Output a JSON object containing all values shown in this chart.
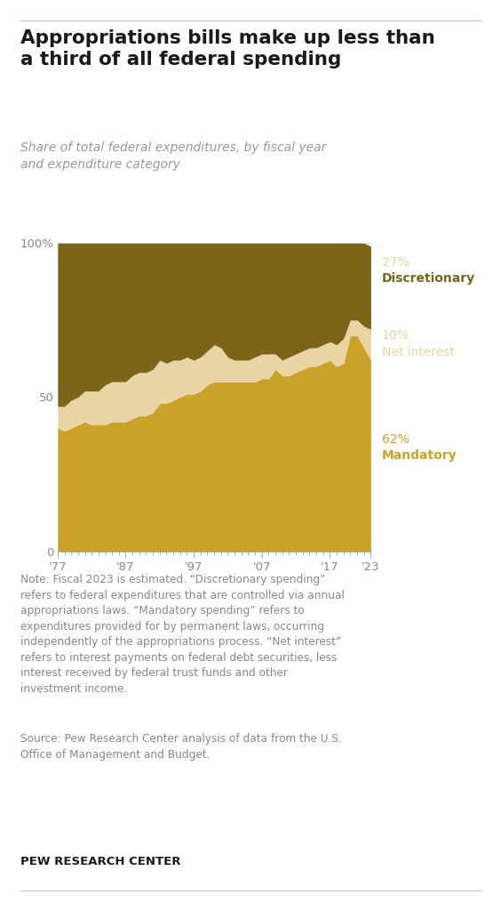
{
  "title": "Appropriations bills make up less than\na third of all federal spending",
  "subtitle": "Share of total federal expenditures, by fiscal year\nand expenditure category",
  "years": [
    1977,
    1978,
    1979,
    1980,
    1981,
    1982,
    1983,
    1984,
    1985,
    1986,
    1987,
    1988,
    1989,
    1990,
    1991,
    1992,
    1993,
    1994,
    1995,
    1996,
    1997,
    1998,
    1999,
    2000,
    2001,
    2002,
    2003,
    2004,
    2005,
    2006,
    2007,
    2008,
    2009,
    2010,
    2011,
    2012,
    2013,
    2014,
    2015,
    2016,
    2017,
    2018,
    2019,
    2020,
    2021,
    2022,
    2023
  ],
  "mandatory": [
    40,
    39,
    40,
    41,
    42,
    41,
    41,
    41,
    42,
    42,
    42,
    43,
    44,
    44,
    45,
    48,
    48,
    49,
    50,
    51,
    51,
    52,
    54,
    55,
    55,
    55,
    55,
    55,
    55,
    55,
    56,
    56,
    59,
    57,
    57,
    58,
    59,
    60,
    60,
    61,
    62,
    60,
    61,
    70,
    70,
    66,
    62
  ],
  "net_interest": [
    7,
    8,
    9,
    9,
    10,
    11,
    11,
    13,
    13,
    13,
    13,
    14,
    14,
    14,
    14,
    14,
    13,
    13,
    12,
    12,
    11,
    11,
    11,
    12,
    11,
    8,
    7,
    7,
    7,
    8,
    8,
    8,
    5,
    5,
    6,
    6,
    6,
    6,
    6,
    6,
    6,
    7,
    8,
    5,
    5,
    7,
    10
  ],
  "discretionary": [
    53,
    53,
    51,
    50,
    48,
    48,
    48,
    46,
    45,
    45,
    45,
    43,
    42,
    42,
    41,
    38,
    39,
    38,
    38,
    37,
    38,
    37,
    35,
    33,
    34,
    37,
    38,
    38,
    38,
    37,
    36,
    36,
    36,
    38,
    37,
    36,
    35,
    34,
    34,
    33,
    32,
    33,
    31,
    25,
    25,
    27,
    27
  ],
  "color_mandatory": "#c9a227",
  "color_net_interest": "#e8d5a3",
  "color_discretionary": "#7a6519",
  "label_mandatory_pct": "62%",
  "label_mandatory": "Mandatory",
  "label_net_interest_pct": "10%",
  "label_net_interest": "Net interest",
  "label_discretionary_pct": "27%",
  "label_discretionary": "Discretionary",
  "note_text": "Note: Fiscal 2023 is estimated. “Discretionary spending”\nrefers to federal expenditures that are controlled via annual\nappropriations laws. “Mandatory spending” refers to\nexpenditures provided for by permanent laws, occurring\nindependently of the appropriations process. “Net interest”\nrefers to interest payments on federal debt securities, less\ninterest received by federal trust funds and other\ninvestment income.",
  "source_text": "Source: Pew Research Center analysis of data from the U.S.\nOffice of Management and Budget.",
  "brand": "PEW RESEARCH CENTER",
  "background_color": "#ffffff",
  "tick_color": "#aaaaaa",
  "xtick_labels": [
    "'77",
    "'87",
    "'97",
    "'07",
    "'17",
    "'23"
  ],
  "xtick_positions": [
    1977,
    1987,
    1997,
    2007,
    2017,
    2023
  ]
}
